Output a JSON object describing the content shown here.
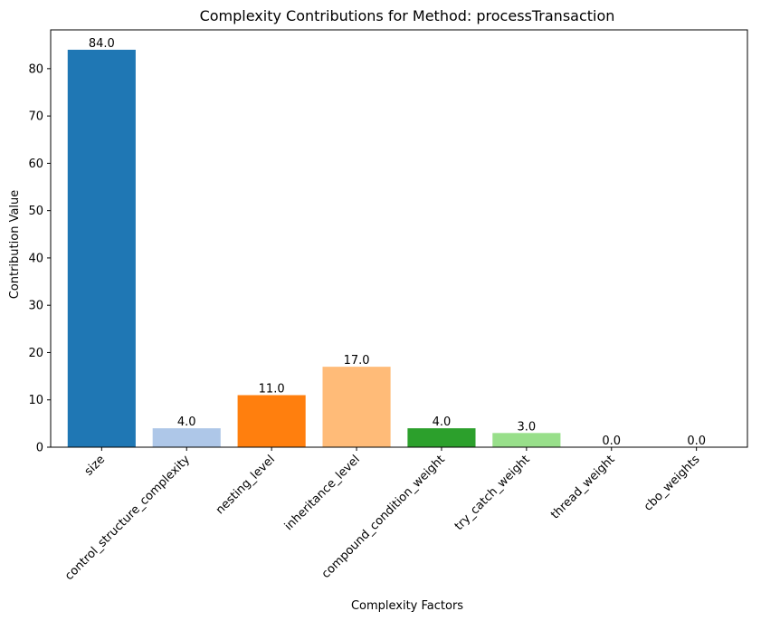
{
  "chart_data": {
    "type": "bar",
    "title": "Complexity Contributions for Method: processTransaction",
    "xlabel": "Complexity Factors",
    "ylabel": "Contribution Value",
    "categories": [
      "size",
      "control_structure_complexity",
      "nesting_level",
      "inheritance_level",
      "compound_condition_weight",
      "try_catch_weight",
      "thread_weight",
      "cbo_weights"
    ],
    "values": [
      84.0,
      4.0,
      11.0,
      17.0,
      4.0,
      3.0,
      0.0,
      0.0
    ],
    "value_labels": [
      "84.0",
      "4.0",
      "11.0",
      "17.0",
      "4.0",
      "3.0",
      "0.0",
      "0.0"
    ],
    "colors": [
      "#1f77b4",
      "#aec7e8",
      "#ff7f0e",
      "#ffbb78",
      "#2ca02c",
      "#98df8a",
      "#d62728",
      "#ff9896"
    ],
    "yticks": [
      0,
      10,
      20,
      30,
      40,
      50,
      60,
      70,
      80
    ],
    "ylim": [
      0,
      88.2
    ],
    "grid": false,
    "legend": "none"
  }
}
